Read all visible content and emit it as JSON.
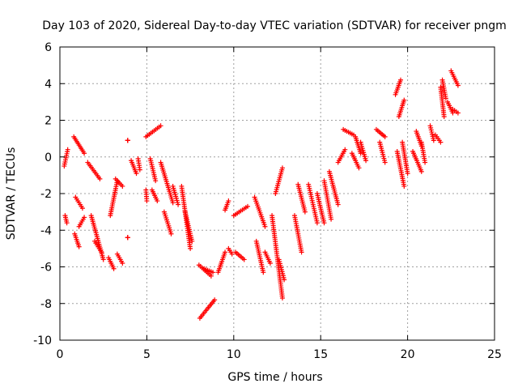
{
  "chart_data": {
    "type": "scatter",
    "title": "Day 103 of 2020, Sidereal Day-to-day VTEC variation (SDTVAR) for receiver pngm",
    "xlabel": "GPS time / hours",
    "ylabel": "SDTVAR / TECUs",
    "xlim": [
      0,
      25
    ],
    "ylim": [
      -10,
      6
    ],
    "xticks": [
      0,
      5,
      10,
      15,
      20,
      25
    ],
    "yticks": [
      -10,
      -8,
      -6,
      -4,
      -2,
      0,
      2,
      4,
      6
    ],
    "xtick_labels": [
      "0",
      "5",
      "10",
      "15",
      "20",
      "25"
    ],
    "ytick_labels": [
      "-10",
      "-8",
      "-6",
      "-4",
      "-2",
      "0",
      "2",
      "4",
      "6"
    ],
    "grid": true,
    "marker": "+",
    "marker_color": "#ff0000",
    "segments": [
      {
        "x": [
          0.25,
          0.45
        ],
        "y": [
          -0.5,
          0.4
        ]
      },
      {
        "x": [
          0.3,
          0.4
        ],
        "y": [
          -3.2,
          -3.6
        ]
      },
      {
        "x": [
          0.8,
          1.4
        ],
        "y": [
          1.1,
          0.2
        ]
      },
      {
        "x": [
          0.9,
          1.3
        ],
        "y": [
          -2.2,
          -2.8
        ]
      },
      {
        "x": [
          0.85,
          1.1
        ],
        "y": [
          -4.2,
          -4.9
        ]
      },
      {
        "x": [
          1.1,
          1.4
        ],
        "y": [
          -3.8,
          -3.3
        ]
      },
      {
        "x": [
          1.6,
          2.3
        ],
        "y": [
          -0.3,
          -1.2
        ]
      },
      {
        "x": [
          1.8,
          2.5
        ],
        "y": [
          -3.2,
          -5.6
        ]
      },
      {
        "x": [
          2.0,
          2.4
        ],
        "y": [
          -4.6,
          -5.2
        ]
      },
      {
        "x": [
          2.8,
          3.1
        ],
        "y": [
          -5.5,
          -6.1
        ]
      },
      {
        "x": [
          2.9,
          3.3
        ],
        "y": [
          -3.2,
          -1.3
        ]
      },
      {
        "x": [
          3.3,
          3.6
        ],
        "y": [
          -5.3,
          -5.8
        ]
      },
      {
        "x": [
          3.2,
          3.6
        ],
        "y": [
          -1.2,
          -1.6
        ]
      },
      {
        "x": [
          3.9,
          3.9
        ],
        "y": [
          0.9,
          0.9
        ]
      },
      {
        "x": [
          3.9,
          3.9
        ],
        "y": [
          -4.4,
          -4.4
        ]
      },
      {
        "x": [
          4.1,
          4.4
        ],
        "y": [
          -0.2,
          -0.9
        ]
      },
      {
        "x": [
          4.5,
          4.6
        ],
        "y": [
          -0.1,
          -0.7
        ]
      },
      {
        "x": [
          4.95,
          5.0
        ],
        "y": [
          -1.8,
          -2.4
        ]
      },
      {
        "x": [
          4.95,
          5.8
        ],
        "y": [
          1.1,
          1.7
        ]
      },
      {
        "x": [
          5.2,
          5.5
        ],
        "y": [
          -0.1,
          -1.3
        ]
      },
      {
        "x": [
          5.3,
          5.6
        ],
        "y": [
          -1.8,
          -2.4
        ]
      },
      {
        "x": [
          5.8,
          6.5
        ],
        "y": [
          -0.3,
          -2.5
        ]
      },
      {
        "x": [
          6.0,
          6.4
        ],
        "y": [
          -3.0,
          -4.2
        ]
      },
      {
        "x": [
          6.5,
          6.8
        ],
        "y": [
          -1.6,
          -2.6
        ]
      },
      {
        "x": [
          7.0,
          7.5
        ],
        "y": [
          -1.6,
          -5.0
        ]
      },
      {
        "x": [
          7.2,
          7.6
        ],
        "y": [
          -3.0,
          -4.6
        ]
      },
      {
        "x": [
          8.0,
          8.7
        ],
        "y": [
          -5.9,
          -6.5
        ]
      },
      {
        "x": [
          8.05,
          8.9
        ],
        "y": [
          -8.8,
          -7.8
        ]
      },
      {
        "x": [
          8.3,
          8.8
        ],
        "y": [
          -6.1,
          -6.3
        ]
      },
      {
        "x": [
          9.1,
          9.5
        ],
        "y": [
          -6.3,
          -5.2
        ]
      },
      {
        "x": [
          9.5,
          9.7
        ],
        "y": [
          -2.9,
          -2.4
        ]
      },
      {
        "x": [
          9.7,
          9.9
        ],
        "y": [
          -5.0,
          -5.3
        ]
      },
      {
        "x": [
          10.0,
          10.8
        ],
        "y": [
          -3.2,
          -2.7
        ]
      },
      {
        "x": [
          10.1,
          10.6
        ],
        "y": [
          -5.2,
          -5.6
        ]
      },
      {
        "x": [
          11.2,
          11.8
        ],
        "y": [
          -2.2,
          -3.8
        ]
      },
      {
        "x": [
          11.3,
          11.7
        ],
        "y": [
          -4.6,
          -6.3
        ]
      },
      {
        "x": [
          11.8,
          12.1
        ],
        "y": [
          -5.2,
          -5.8
        ]
      },
      {
        "x": [
          12.2,
          12.8
        ],
        "y": [
          -3.2,
          -7.7
        ]
      },
      {
        "x": [
          12.4,
          12.8
        ],
        "y": [
          -2.0,
          -0.6
        ]
      },
      {
        "x": [
          12.6,
          12.9
        ],
        "y": [
          -5.6,
          -6.7
        ]
      },
      {
        "x": [
          13.5,
          13.9
        ],
        "y": [
          -3.2,
          -5.2
        ]
      },
      {
        "x": [
          13.7,
          14.1
        ],
        "y": [
          -1.5,
          -3.0
        ]
      },
      {
        "x": [
          14.3,
          14.8
        ],
        "y": [
          -1.5,
          -3.6
        ]
      },
      {
        "x": [
          14.8,
          15.2
        ],
        "y": [
          -2.0,
          -3.6
        ]
      },
      {
        "x": [
          15.2,
          15.6
        ],
        "y": [
          -1.3,
          -3.4
        ]
      },
      {
        "x": [
          15.5,
          16.0
        ],
        "y": [
          -0.8,
          -2.6
        ]
      },
      {
        "x": [
          16.0,
          16.4
        ],
        "y": [
          -0.3,
          0.4
        ]
      },
      {
        "x": [
          16.3,
          16.9
        ],
        "y": [
          1.5,
          1.2
        ]
      },
      {
        "x": [
          16.8,
          17.2
        ],
        "y": [
          0.2,
          -0.6
        ]
      },
      {
        "x": [
          17.0,
          17.3
        ],
        "y": [
          1.1,
          0.2
        ]
      },
      {
        "x": [
          17.3,
          17.6
        ],
        "y": [
          0.8,
          -0.2
        ]
      },
      {
        "x": [
          18.2,
          18.7
        ],
        "y": [
          1.5,
          1.1
        ]
      },
      {
        "x": [
          18.4,
          18.7
        ],
        "y": [
          0.8,
          -0.3
        ]
      },
      {
        "x": [
          19.3,
          19.6
        ],
        "y": [
          3.4,
          4.2
        ]
      },
      {
        "x": [
          19.5,
          19.8
        ],
        "y": [
          2.2,
          3.1
        ]
      },
      {
        "x": [
          19.4,
          19.8
        ],
        "y": [
          0.3,
          -1.6
        ]
      },
      {
        "x": [
          19.7,
          20.0
        ],
        "y": [
          0.8,
          -0.9
        ]
      },
      {
        "x": [
          20.3,
          20.8
        ],
        "y": [
          0.3,
          -0.8
        ]
      },
      {
        "x": [
          20.5,
          20.8
        ],
        "y": [
          1.4,
          0.6
        ]
      },
      {
        "x": [
          20.8,
          21.0
        ],
        "y": [
          0.8,
          -0.3
        ]
      },
      {
        "x": [
          21.3,
          21.5
        ],
        "y": [
          1.7,
          0.9
        ]
      },
      {
        "x": [
          21.6,
          21.9
        ],
        "y": [
          1.2,
          0.8
        ]
      },
      {
        "x": [
          21.9,
          22.1
        ],
        "y": [
          3.8,
          2.2
        ]
      },
      {
        "x": [
          22.0,
          22.2
        ],
        "y": [
          4.2,
          3.2
        ]
      },
      {
        "x": [
          22.3,
          22.6
        ],
        "y": [
          3.0,
          2.4
        ]
      },
      {
        "x": [
          22.5,
          22.9
        ],
        "y": [
          4.7,
          3.9
        ]
      },
      {
        "x": [
          22.6,
          22.9
        ],
        "y": [
          2.6,
          2.4
        ]
      }
    ]
  }
}
